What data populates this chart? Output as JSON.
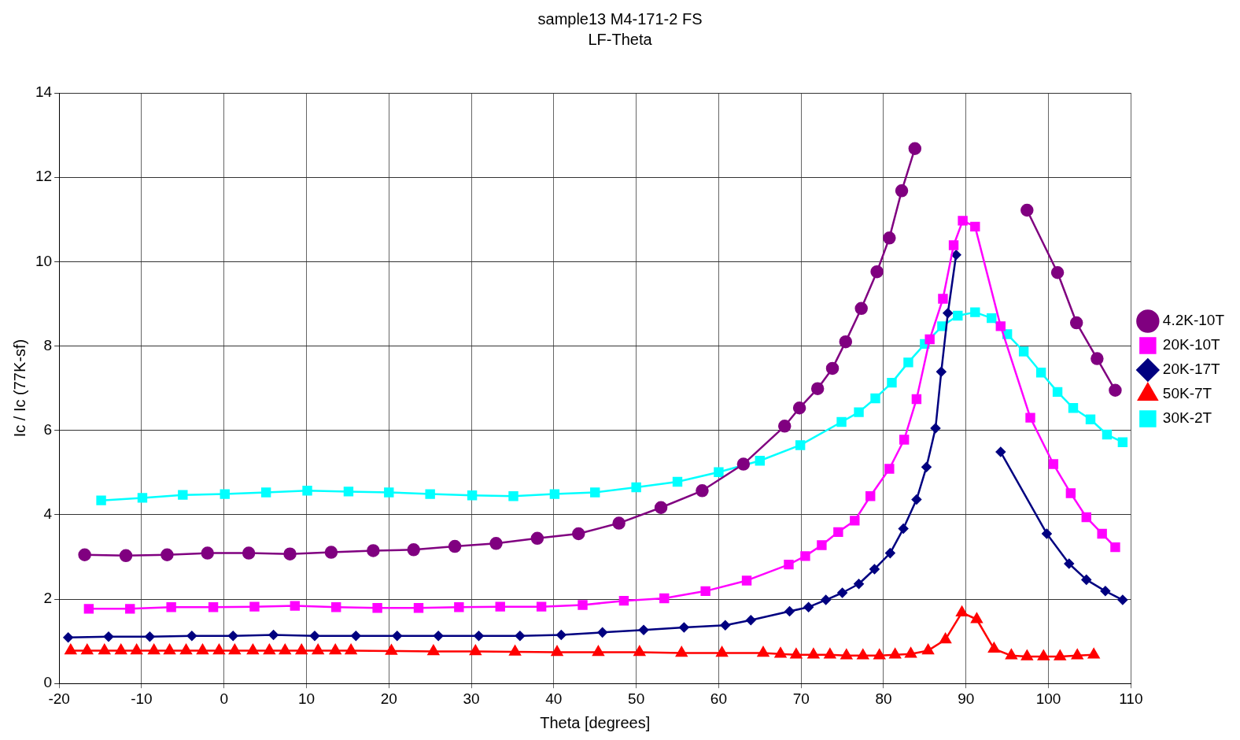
{
  "chart_data": {
    "type": "line",
    "title": "sample13 M4-171-2 FS",
    "subtitle": "LF-Theta",
    "xlabel": "Theta [degrees]",
    "ylabel": "Ic / Ic (77K-sf)",
    "xlim": [
      -20,
      110
    ],
    "xticks": [
      -20,
      -10,
      0,
      10,
      20,
      30,
      40,
      50,
      60,
      70,
      80,
      90,
      100,
      110
    ],
    "ylim": [
      0,
      14
    ],
    "yticks": [
      0,
      2,
      4,
      6,
      8,
      10,
      12,
      14
    ],
    "grid": true,
    "legend": "right",
    "line_style": "solid",
    "series": [
      {
        "name": "4.2K-10T",
        "color": "#800080",
        "marker": "circle",
        "x": [
          -16.9,
          -11.9,
          -6.9,
          -2.0,
          3.0,
          8.0,
          13.0,
          18.1,
          23.0,
          28.0,
          33.0,
          38.0,
          43.0,
          47.9,
          53.0,
          58.0,
          63.0,
          68.0,
          69.8,
          72.0,
          73.8,
          75.4,
          77.3,
          79.2,
          80.7,
          82.2,
          83.8,
          90,
          97.4,
          101.1,
          103.4,
          105.9,
          108.1
        ],
        "values": [
          3.05,
          3.03,
          3.05,
          3.09,
          3.09,
          3.07,
          3.11,
          3.15,
          3.17,
          3.25,
          3.32,
          3.44,
          3.55,
          3.8,
          4.17,
          4.57,
          5.2,
          6.1,
          6.53,
          6.99,
          7.47,
          8.1,
          8.89,
          9.76,
          10.56,
          11.68,
          12.68,
          null,
          11.22,
          9.74,
          8.55,
          7.7,
          6.95
        ]
      },
      {
        "name": "20K-10T",
        "color": "#ff00ff",
        "marker": "square",
        "x": [
          -16.4,
          -11.4,
          -6.4,
          -1.3,
          3.7,
          8.6,
          13.6,
          18.6,
          23.6,
          28.5,
          33.5,
          38.5,
          43.5,
          48.5,
          53.4,
          58.4,
          63.4,
          68.5,
          70.5,
          72.5,
          74.5,
          76.5,
          78.4,
          80.7,
          82.5,
          84.0,
          85.6,
          87.2,
          88.5,
          89.6,
          91.1,
          94.2,
          97.8,
          100.6,
          102.7,
          104.6,
          106.5,
          108.1
        ],
        "values": [
          1.77,
          1.77,
          1.81,
          1.81,
          1.82,
          1.84,
          1.81,
          1.79,
          1.79,
          1.81,
          1.82,
          1.82,
          1.86,
          1.96,
          2.02,
          2.19,
          2.44,
          2.82,
          3.02,
          3.28,
          3.59,
          3.86,
          4.44,
          5.09,
          5.78,
          6.74,
          8.16,
          9.12,
          10.39,
          10.97,
          10.83,
          8.47,
          6.3,
          5.2,
          4.51,
          3.94,
          3.55,
          3.23
        ]
      },
      {
        "name": "20K-17T",
        "color": "#000080",
        "marker": "diamond",
        "x": [
          -18.9,
          -14.0,
          -9.0,
          -3.9,
          1.1,
          6.0,
          11.0,
          16.0,
          21.0,
          26.0,
          30.9,
          35.9,
          40.9,
          45.9,
          50.9,
          55.8,
          60.8,
          63.9,
          68.6,
          70.9,
          73.0,
          75.0,
          77.0,
          78.9,
          80.8,
          82.4,
          84.0,
          85.2,
          86.3,
          87.0,
          87.8,
          88.8,
          91,
          94.2,
          99.8,
          102.5,
          104.6,
          106.9,
          109.0
        ],
        "values": [
          1.09,
          1.11,
          1.11,
          1.13,
          1.13,
          1.15,
          1.13,
          1.13,
          1.13,
          1.13,
          1.13,
          1.13,
          1.15,
          1.21,
          1.27,
          1.33,
          1.38,
          1.5,
          1.71,
          1.81,
          1.98,
          2.15,
          2.36,
          2.71,
          3.09,
          3.67,
          4.36,
          5.13,
          6.05,
          7.39,
          8.78,
          10.16,
          null,
          5.49,
          3.55,
          2.84,
          2.46,
          2.19,
          1.98
        ]
      },
      {
        "name": "50K-7T",
        "color": "#ff0000",
        "marker": "triangle",
        "x": [
          -18.6,
          -16.6,
          -14.5,
          -12.5,
          -10.6,
          -8.5,
          -6.6,
          -4.6,
          -2.6,
          -0.6,
          1.3,
          3.5,
          5.5,
          7.4,
          9.4,
          11.4,
          13.5,
          15.4,
          20.3,
          25.4,
          30.5,
          35.3,
          40.4,
          45.4,
          50.4,
          55.5,
          60.4,
          65.4,
          67.5,
          69.4,
          71.5,
          73.5,
          75.5,
          77.5,
          79.5,
          81.4,
          83.3,
          85.4,
          87.5,
          89.5,
          91.3,
          93.4,
          95.5,
          97.4,
          99.4,
          101.4,
          103.5,
          105.5
        ],
        "values": [
          0.78,
          0.78,
          0.78,
          0.78,
          0.78,
          0.78,
          0.78,
          0.78,
          0.78,
          0.78,
          0.78,
          0.78,
          0.78,
          0.78,
          0.78,
          0.78,
          0.78,
          0.78,
          0.77,
          0.76,
          0.76,
          0.75,
          0.74,
          0.74,
          0.74,
          0.72,
          0.72,
          0.72,
          0.7,
          0.68,
          0.68,
          0.68,
          0.66,
          0.66,
          0.66,
          0.68,
          0.7,
          0.78,
          1.04,
          1.68,
          1.52,
          0.82,
          0.66,
          0.64,
          0.64,
          0.64,
          0.66,
          0.68
        ]
      },
      {
        "name": "30K-2T",
        "color": "#00ffff",
        "marker": "square",
        "x": [
          -14.9,
          -9.9,
          -5.0,
          0.1,
          5.1,
          10.1,
          15.1,
          20.0,
          25.0,
          30.1,
          35.1,
          40.1,
          45.0,
          50.0,
          55.0,
          60.0,
          65.0,
          69.9,
          74.9,
          77.0,
          79.0,
          81.0,
          83.0,
          85.0,
          87.1,
          89.0,
          91.1,
          93.1,
          95.0,
          97.0,
          99.1,
          101.1,
          103.0,
          105.1,
          107.1,
          109.0
        ],
        "values": [
          4.34,
          4.4,
          4.47,
          4.49,
          4.53,
          4.57,
          4.55,
          4.53,
          4.49,
          4.46,
          4.44,
          4.49,
          4.53,
          4.65,
          4.78,
          5.01,
          5.28,
          5.65,
          6.2,
          6.43,
          6.76,
          7.13,
          7.61,
          8.05,
          8.47,
          8.72,
          8.8,
          8.66,
          8.28,
          7.87,
          7.37,
          6.91,
          6.53,
          6.26,
          5.9,
          5.72
        ]
      }
    ]
  }
}
